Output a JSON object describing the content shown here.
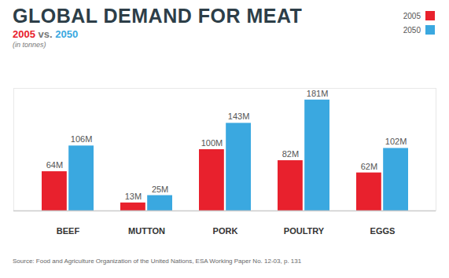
{
  "chart_data": {
    "type": "bar",
    "title": "GLOBAL DEMAND FOR MEAT",
    "subtitle": "2005 vs. 2050",
    "note": "(in tonnes)",
    "caption": "Source: Food and Agriculture Organization of the United Nations, ESA Working Paper No. 12-03, p. 131",
    "categories": [
      "BEEF",
      "MUTTON",
      "PORK",
      "POULTRY",
      "EGGS"
    ],
    "series": [
      {
        "name": "2005",
        "color": "#e8212d",
        "values": [
          64000000,
          13000000,
          100000000,
          82000000,
          62000000
        ],
        "value_labels": [
          "64M",
          "13M",
          "100M",
          "82M",
          "62M"
        ]
      },
      {
        "name": "2050",
        "color": "#3aa8e0",
        "values": [
          106000000,
          25000000,
          143000000,
          181000000,
          102000000
        ],
        "value_labels": [
          "106M",
          "25M",
          "143M",
          "181M",
          "102M"
        ]
      }
    ],
    "ylim": [
      0,
      200000000
    ],
    "yticks": [],
    "tick_labels": "x",
    "data_labels": true,
    "legend": "top-right",
    "grid": false
  }
}
